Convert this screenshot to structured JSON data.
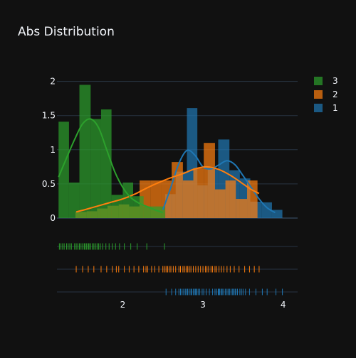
{
  "colors": {
    "background": "#111111",
    "grid": "#283442",
    "text": "#f2f5fa",
    "series": {
      "1": "#1f77b4",
      "2": "#ff7f0e",
      "3": "#2ca02c"
    }
  },
  "chart_data": {
    "type": "histogram",
    "title": "Abs Distribution",
    "xlabel": "",
    "ylabel": "",
    "xlim": [
      1.18,
      4.18
    ],
    "ylim": [
      0,
      2.1
    ],
    "x_ticks": [
      2,
      3,
      4
    ],
    "y_ticks": [
      0,
      0.5,
      1,
      1.5,
      2
    ],
    "y_tick_labels": [
      "0",
      "0.5",
      "1",
      "1.5",
      "2"
    ],
    "grid": true,
    "legend_position": "top-right",
    "legend": [
      "3",
      "2",
      "1"
    ],
    "bin_width": 0.1333,
    "series": [
      {
        "name": "1",
        "color": "#1f77b4",
        "bins": [
          {
            "x0": 2.53,
            "x1": 2.66,
            "y": 0.35
          },
          {
            "x0": 2.66,
            "x1": 2.8,
            "y": 0.68
          },
          {
            "x0": 2.8,
            "x1": 2.93,
            "y": 1.61
          },
          {
            "x0": 2.93,
            "x1": 3.06,
            "y": 0.48
          },
          {
            "x0": 3.06,
            "x1": 3.19,
            "y": 0.72
          },
          {
            "x0": 3.19,
            "x1": 3.33,
            "y": 1.15
          },
          {
            "x0": 3.33,
            "x1": 3.46,
            "y": 0.7
          },
          {
            "x0": 3.46,
            "x1": 3.59,
            "y": 0.58
          },
          {
            "x0": 3.59,
            "x1": 3.73,
            "y": 0.24
          },
          {
            "x0": 3.73,
            "x1": 3.86,
            "y": 0.23
          },
          {
            "x0": 3.86,
            "x1": 3.99,
            "y": 0.12
          }
        ],
        "kde": {
          "x": [
            2.5,
            2.6,
            2.7,
            2.8,
            2.9,
            3.0,
            3.1,
            3.2,
            3.3,
            3.4,
            3.5,
            3.6,
            3.7,
            3.8,
            3.9
          ],
          "y": [
            0.12,
            0.45,
            0.8,
            0.99,
            0.92,
            0.75,
            0.72,
            0.78,
            0.84,
            0.78,
            0.62,
            0.45,
            0.28,
            0.15,
            0.08
          ]
        },
        "rug": [
          2.54,
          2.61,
          2.66,
          2.7,
          2.72,
          2.74,
          2.76,
          2.78,
          2.8,
          2.81,
          2.83,
          2.85,
          2.86,
          2.88,
          2.9,
          2.91,
          2.92,
          2.94,
          2.96,
          2.99,
          3.01,
          3.04,
          3.08,
          3.12,
          3.15,
          3.17,
          3.19,
          3.2,
          3.21,
          3.23,
          3.24,
          3.26,
          3.28,
          3.3,
          3.32,
          3.33,
          3.35,
          3.37,
          3.38,
          3.4,
          3.41,
          3.43,
          3.46,
          3.48,
          3.5,
          3.53,
          3.58,
          3.66,
          3.74,
          3.8,
          3.91,
          3.99
        ]
      },
      {
        "name": "2",
        "color": "#ff7f0e",
        "bins": [
          {
            "x0": 1.41,
            "x1": 1.55,
            "y": 0.09
          },
          {
            "x0": 1.55,
            "x1": 1.68,
            "y": 0.1
          },
          {
            "x0": 1.68,
            "x1": 1.81,
            "y": 0.14
          },
          {
            "x0": 1.81,
            "x1": 1.95,
            "y": 0.18
          },
          {
            "x0": 1.95,
            "x1": 2.08,
            "y": 0.2
          },
          {
            "x0": 2.08,
            "x1": 2.21,
            "y": 0.17
          },
          {
            "x0": 2.21,
            "x1": 2.35,
            "y": 0.55
          },
          {
            "x0": 2.35,
            "x1": 2.48,
            "y": 0.55
          },
          {
            "x0": 2.48,
            "x1": 2.61,
            "y": 0.55
          },
          {
            "x0": 2.61,
            "x1": 2.75,
            "y": 0.82
          },
          {
            "x0": 2.75,
            "x1": 2.88,
            "y": 0.55
          },
          {
            "x0": 2.88,
            "x1": 3.01,
            "y": 0.73
          },
          {
            "x0": 3.01,
            "x1": 3.15,
            "y": 1.1
          },
          {
            "x0": 3.15,
            "x1": 3.28,
            "y": 0.42
          },
          {
            "x0": 3.28,
            "x1": 3.41,
            "y": 0.55
          },
          {
            "x0": 3.41,
            "x1": 3.55,
            "y": 0.28
          },
          {
            "x0": 3.55,
            "x1": 3.68,
            "y": 0.55
          }
        ],
        "kde": {
          "x": [
            1.42,
            1.55,
            1.7,
            1.85,
            2.0,
            2.15,
            2.3,
            2.45,
            2.6,
            2.75,
            2.9,
            3.05,
            3.2,
            3.35,
            3.5,
            3.6,
            3.7
          ],
          "y": [
            0.09,
            0.13,
            0.18,
            0.23,
            0.28,
            0.35,
            0.44,
            0.52,
            0.59,
            0.65,
            0.72,
            0.75,
            0.71,
            0.62,
            0.5,
            0.42,
            0.36
          ]
        },
        "rug": [
          1.42,
          1.5,
          1.57,
          1.64,
          1.73,
          1.8,
          1.87,
          1.92,
          1.95,
          2.02,
          2.08,
          2.14,
          2.2,
          2.26,
          2.29,
          2.31,
          2.36,
          2.4,
          2.45,
          2.5,
          2.52,
          2.54,
          2.56,
          2.58,
          2.6,
          2.63,
          2.66,
          2.7,
          2.72,
          2.75,
          2.77,
          2.79,
          2.81,
          2.83,
          2.85,
          2.88,
          2.91,
          2.94,
          2.97,
          3.0,
          3.03,
          3.05,
          3.07,
          3.1,
          3.12,
          3.15,
          3.17,
          3.2,
          3.23,
          3.26,
          3.3,
          3.34,
          3.39,
          3.45,
          3.52,
          3.58,
          3.64,
          3.7
        ]
      },
      {
        "name": "3",
        "color": "#2ca02c",
        "bins": [
          {
            "x0": 1.2,
            "x1": 1.33,
            "y": 1.41
          },
          {
            "x0": 1.33,
            "x1": 1.46,
            "y": 0.52
          },
          {
            "x0": 1.46,
            "x1": 1.6,
            "y": 1.95
          },
          {
            "x0": 1.6,
            "x1": 1.73,
            "y": 1.45
          },
          {
            "x0": 1.73,
            "x1": 1.86,
            "y": 1.59
          },
          {
            "x0": 1.86,
            "x1": 2.0,
            "y": 0.34
          },
          {
            "x0": 2.0,
            "x1": 2.13,
            "y": 0.52
          },
          {
            "x0": 2.13,
            "x1": 2.26,
            "y": 0.32
          },
          {
            "x0": 2.26,
            "x1": 2.4,
            "y": 0.17
          },
          {
            "x0": 2.4,
            "x1": 2.53,
            "y": 0.17
          }
        ],
        "kde": {
          "x": [
            1.2,
            1.3,
            1.4,
            1.5,
            1.6,
            1.7,
            1.8,
            1.9,
            2.0,
            2.1,
            2.2,
            2.3,
            2.4,
            2.5
          ],
          "y": [
            0.6,
            0.88,
            1.15,
            1.38,
            1.45,
            1.32,
            1.0,
            0.68,
            0.45,
            0.3,
            0.22,
            0.17,
            0.12,
            0.08
          ]
        },
        "rug": [
          1.21,
          1.23,
          1.25,
          1.27,
          1.3,
          1.32,
          1.34,
          1.36,
          1.4,
          1.42,
          1.44,
          1.46,
          1.48,
          1.5,
          1.52,
          1.53,
          1.55,
          1.57,
          1.58,
          1.6,
          1.62,
          1.64,
          1.66,
          1.68,
          1.7,
          1.72,
          1.75,
          1.79,
          1.83,
          1.87,
          1.91,
          1.96,
          2.02,
          2.1,
          2.18,
          2.3,
          2.52
        ]
      }
    ]
  }
}
